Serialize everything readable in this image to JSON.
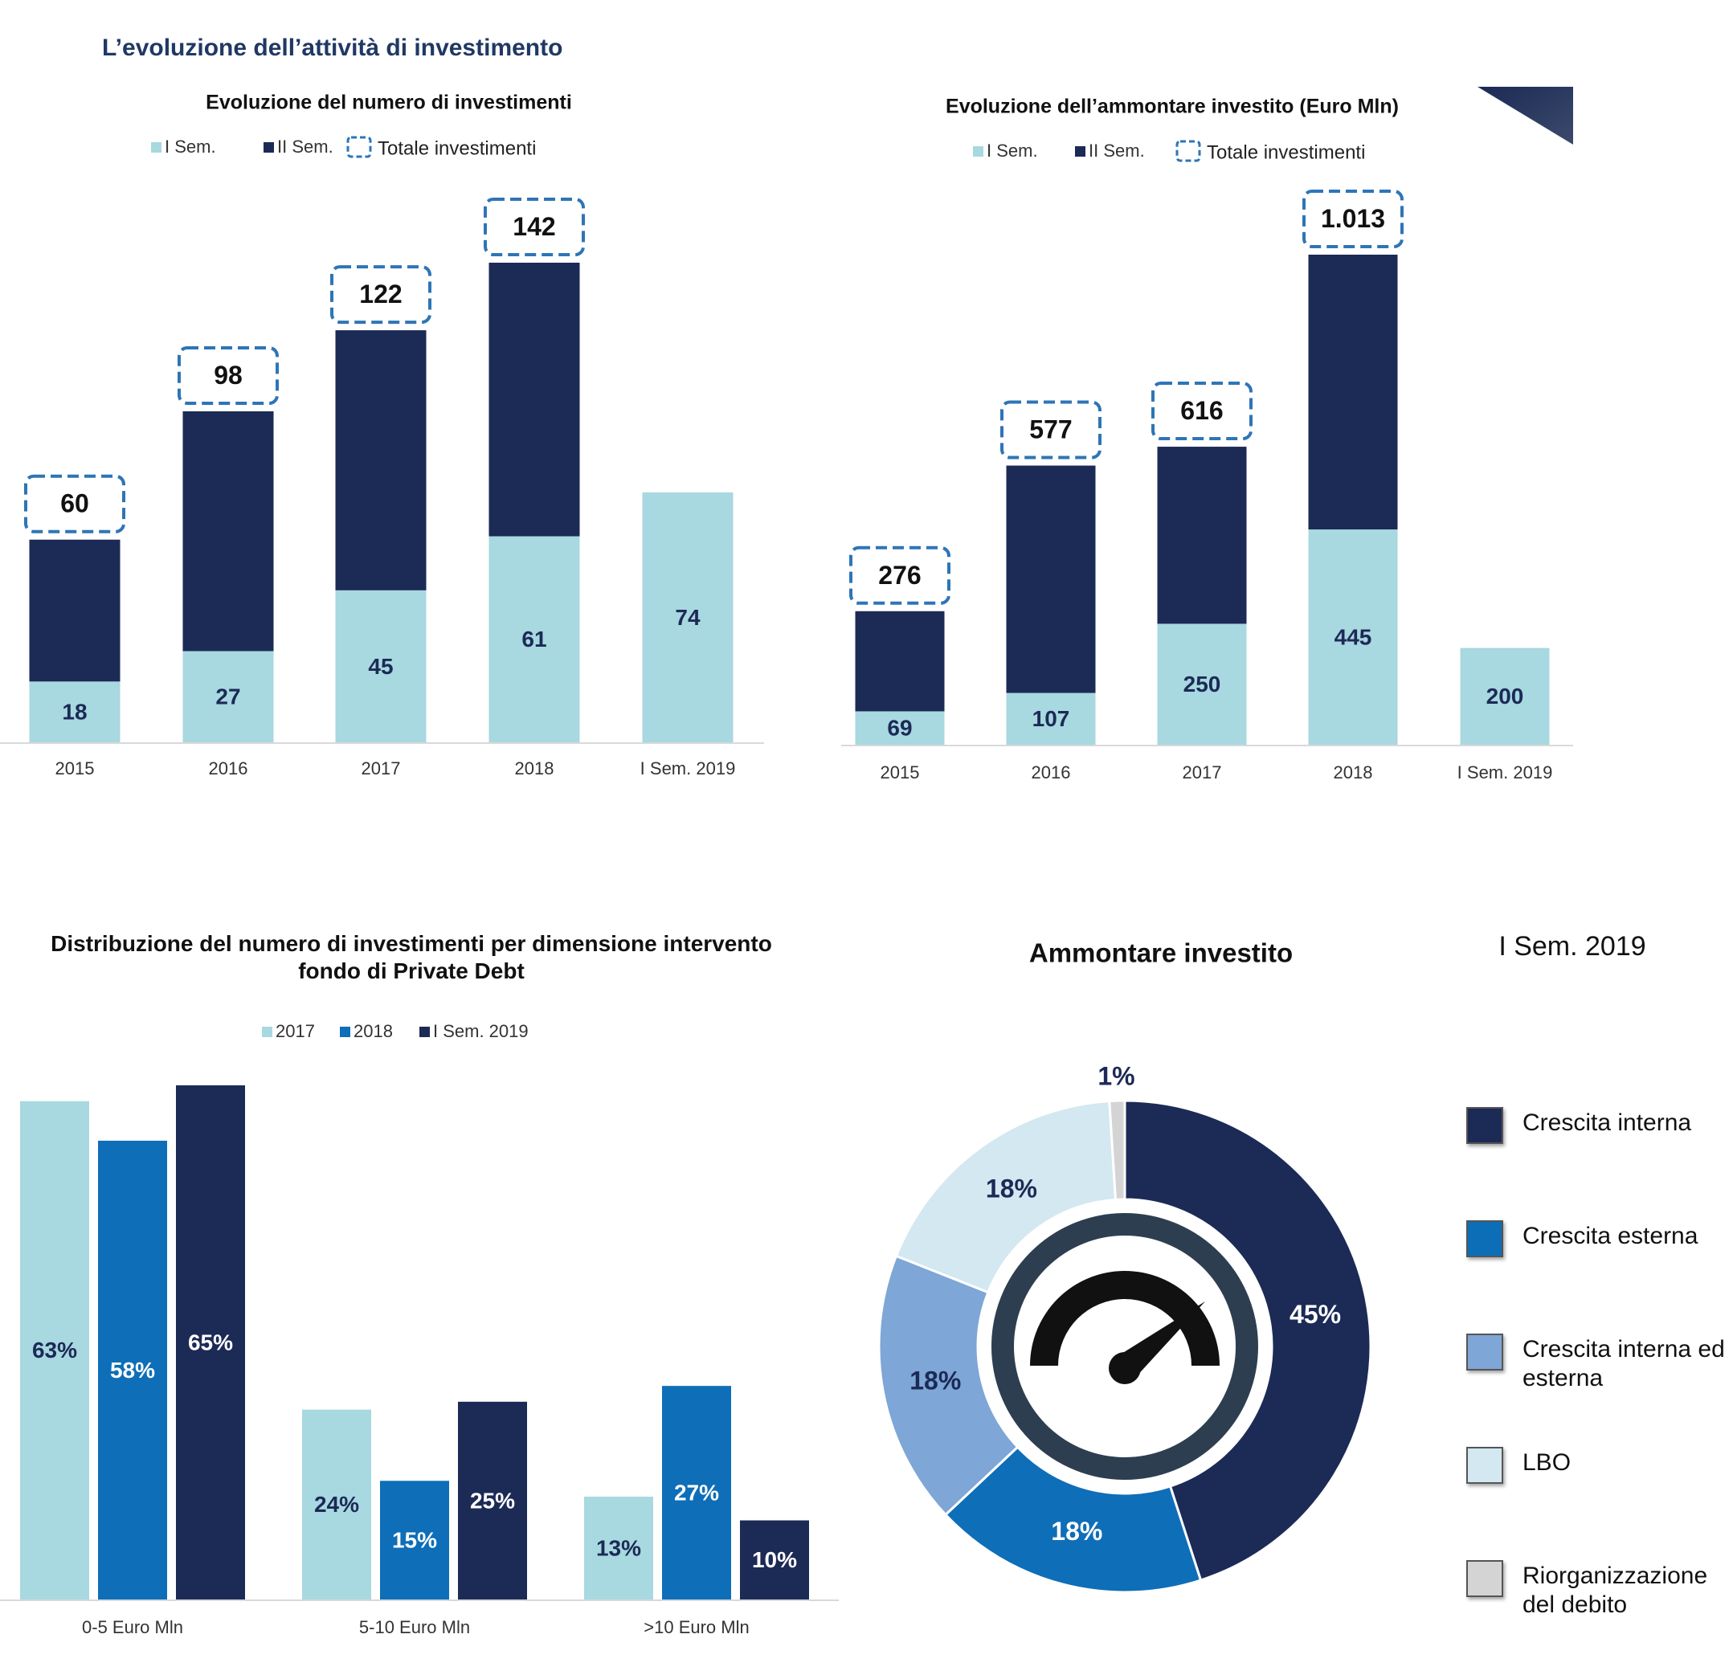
{
  "title": "L’evoluzione dell’attività di investimento",
  "chart_data": [
    {
      "type": "stacked_bar",
      "title": "Evoluzione del numero di investimenti",
      "categories": [
        "2015",
        "2016",
        "2017",
        "2018",
        "I Sem. 2019"
      ],
      "series": [
        {
          "name": "I Sem.",
          "color": "#a8d8e0",
          "values": [
            18,
            27,
            45,
            61,
            74
          ]
        },
        {
          "name": "II Sem.",
          "color": "#1c2a56",
          "values": [
            42,
            71,
            77,
            81,
            null
          ]
        }
      ],
      "totals": {
        "name": "Totale investimenti",
        "color": "#2e75b6",
        "values": [
          60,
          98,
          122,
          142,
          null
        ]
      }
    },
    {
      "type": "stacked_bar",
      "title": "Evoluzione dell’ammontare investito (Euro Mln)",
      "categories": [
        "2015",
        "2016",
        "2017",
        "2018",
        "I Sem. 2019"
      ],
      "series": [
        {
          "name": "I Sem.",
          "color": "#a8d8e0",
          "values": [
            69,
            107,
            250,
            445,
            200
          ]
        },
        {
          "name": "II Sem.",
          "color": "#1c2a56",
          "values": [
            207,
            470,
            366,
            568,
            null
          ]
        }
      ],
      "totals": {
        "name": "Totale investimenti",
        "color": "#2e75b6",
        "values": [
          276,
          577,
          616,
          1013,
          null
        ],
        "value_labels": [
          "276",
          "577",
          "616",
          "1.013",
          null
        ]
      }
    },
    {
      "type": "grouped_bar",
      "title": "Distribuzione del numero di investimenti per dimensione intervento fondo di Private Debt",
      "categories": [
        "0-5 Euro Mln",
        "5-10 Euro Mln",
        ">10 Euro Mln"
      ],
      "series": [
        {
          "name": "2017",
          "color": "#a8d8e0",
          "values": [
            63,
            24,
            13
          ],
          "value_labels": [
            "63%",
            "24%",
            "13%"
          ]
        },
        {
          "name": "2018",
          "color": "#0e6eb8",
          "values": [
            58,
            15,
            27
          ],
          "value_labels": [
            "58%",
            "15%",
            "27%"
          ]
        },
        {
          "name": "I Sem. 2019",
          "color": "#1c2a56",
          "values": [
            65,
            25,
            10
          ],
          "value_labels": [
            "65%",
            "25%",
            "10%"
          ]
        }
      ]
    },
    {
      "type": "donut",
      "title": "Ammontare investito",
      "subtitle": "I Sem. 2019",
      "categories": [
        "Crescita interna",
        "Crescita esterna",
        "Crescita interna ed esterna",
        "LBO",
        "Riorganizzazione del debito"
      ],
      "values": [
        45,
        18,
        18,
        18,
        1
      ],
      "value_labels": [
        "45%",
        "18%",
        "18%",
        "18%",
        "1%"
      ],
      "colors": [
        "#1c2a56",
        "#0e6eb8",
        "#7ea6d6",
        "#d3e8f0",
        "#d4d4d4"
      ]
    }
  ]
}
